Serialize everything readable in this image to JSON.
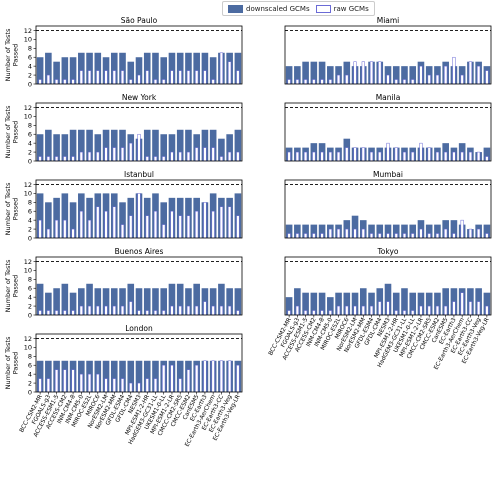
{
  "legend": {
    "items": [
      {
        "label": "downscaled GCMs",
        "color": "#4c6ba1"
      },
      {
        "label": "raw GCMs",
        "color": "#ffffff",
        "edge": "#6b6bd6"
      }
    ],
    "placement": "top-center"
  },
  "colors": {
    "downscaled": "#4c6ba1",
    "raw_fill": "#ffffff",
    "raw_edge": "#6b6bd6",
    "reference_line": "#000000"
  },
  "chart_data": {
    "type": "bar",
    "ylabel": "Number of Tests\nPassed",
    "ylim": [
      0,
      13
    ],
    "yticks": [
      0,
      2,
      4,
      6,
      8,
      10,
      12
    ],
    "reference_line": {
      "y": 12,
      "style": "dashed"
    },
    "grid": false,
    "categories": [
      "BCC-CSM2-MR",
      "FGOALS-g3",
      "ACCESS-ESM1-5",
      "ACCESS-CM2",
      "INM-CM4-8",
      "INM-CM5-0",
      "MIROC-ES2L",
      "MIROC6",
      "NorESM2-LM",
      "NorESM2-MM",
      "GFDL-ESM4",
      "GFDL-CM4",
      "NESM3",
      "MPI-ESM1-2-HR",
      "HadGEM3-GC31-LL",
      "UKESM1-0-LL",
      "MPI-ESM1-2-LR",
      "CMCC-CM2-SR5",
      "CMCC-ESM2",
      "CanESM5",
      "EC-Earth3",
      "EC-Earth3-AerChem",
      "EC-Earth3-CC",
      "EC-Earth3-Veg",
      "EC-Earth3-Veg-LR"
    ],
    "panels": [
      {
        "title": "São Paulo",
        "series": [
          {
            "name": "downscaled GCMs",
            "values": [
              6,
              7,
              5,
              6,
              6,
              7,
              7,
              7,
              6,
              7,
              7,
              5,
              6,
              7,
              7,
              6,
              7,
              7,
              7,
              7,
              7,
              6,
              7,
              7,
              7
            ]
          },
          {
            "name": "raw GCMs",
            "values": [
              1,
              2,
              1,
              1,
              1,
              3,
              3,
              3,
              3,
              3,
              3,
              1,
              2,
              3,
              1,
              1,
              3,
              3,
              3,
              3,
              3,
              1,
              7,
              5,
              3
            ]
          }
        ]
      },
      {
        "title": "Miami",
        "series": [
          {
            "name": "downscaled GCMs",
            "values": [
              4,
              4,
              5,
              5,
              5,
              4,
              4,
              5,
              4,
              4,
              5,
              5,
              4,
              4,
              4,
              4,
              5,
              4,
              4,
              5,
              4,
              4,
              5,
              5,
              4
            ]
          },
          {
            "name": "raw GCMs",
            "values": [
              1,
              1,
              1,
              1,
              1,
              1,
              2,
              2,
              5,
              5,
              5,
              5,
              2,
              1,
              1,
              1,
              4,
              2,
              2,
              4,
              6,
              2,
              5,
              4,
              3
            ]
          }
        ]
      },
      {
        "title": "New York",
        "series": [
          {
            "name": "downscaled GCMs",
            "values": [
              6,
              7,
              6,
              6,
              7,
              7,
              7,
              6,
              7,
              7,
              7,
              6,
              5,
              7,
              7,
              6,
              6,
              7,
              7,
              6,
              7,
              7,
              5,
              6,
              7
            ]
          },
          {
            "name": "raw GCMs",
            "values": [
              1,
              1,
              1,
              1,
              1,
              2,
              2,
              2,
              3,
              3,
              3,
              4,
              6,
              1,
              1,
              1,
              2,
              2,
              2,
              3,
              3,
              3,
              1,
              2,
              2
            ]
          }
        ]
      },
      {
        "title": "Manila",
        "series": [
          {
            "name": "downscaled GCMs",
            "values": [
              3,
              3,
              3,
              4,
              4,
              3,
              3,
              5,
              3,
              3,
              3,
              3,
              3,
              3,
              3,
              3,
              3,
              3,
              3,
              4,
              3,
              4,
              3,
              2,
              3
            ]
          },
          {
            "name": "raw GCMs",
            "values": [
              2,
              2,
              2,
              2,
              2,
              2,
              2,
              3,
              3,
              3,
              2,
              2,
              4,
              3,
              2,
              2,
              4,
              3,
              2,
              2,
              2,
              2,
              2,
              2,
              1
            ]
          }
        ]
      },
      {
        "title": "Istanbul",
        "series": [
          {
            "name": "downscaled GCMs",
            "values": [
              10,
              8,
              9,
              10,
              8,
              10,
              9,
              10,
              10,
              10,
              8,
              9,
              10,
              9,
              10,
              8,
              9,
              9,
              9,
              9,
              8,
              10,
              9,
              9,
              10
            ]
          },
          {
            "name": "raw GCMs",
            "values": [
              4,
              2,
              4,
              4,
              2,
              6,
              4,
              7,
              6,
              7,
              3,
              5,
              10,
              5,
              6,
              3,
              6,
              5,
              5,
              6,
              8,
              6,
              7,
              7,
              5
            ]
          }
        ]
      },
      {
        "title": "Mumbai",
        "series": [
          {
            "name": "downscaled GCMs",
            "values": [
              3,
              3,
              3,
              3,
              3,
              3,
              3,
              4,
              5,
              4,
              3,
              3,
              3,
              3,
              3,
              3,
              4,
              3,
              3,
              4,
              4,
              3,
              2,
              3,
              3
            ]
          },
          {
            "name": "raw GCMs",
            "values": [
              1,
              1,
              1,
              1,
              1,
              2,
              2,
              2,
              2,
              2,
              1,
              1,
              1,
              1,
              1,
              1,
              2,
              1,
              1,
              2,
              1,
              4,
              2,
              2,
              1
            ]
          }
        ]
      },
      {
        "title": "Buenos Aires",
        "series": [
          {
            "name": "downscaled GCMs",
            "values": [
              7,
              5,
              6,
              7,
              5,
              6,
              7,
              6,
              6,
              6,
              6,
              7,
              6,
              6,
              6,
              6,
              7,
              7,
              6,
              7,
              6,
              6,
              7,
              6,
              6
            ]
          },
          {
            "name": "raw GCMs",
            "values": [
              1,
              1,
              1,
              1,
              1,
              2,
              2,
              2,
              2,
              2,
              2,
              3,
              1,
              1,
              1,
              1,
              2,
              2,
              2,
              2,
              3,
              2,
              2,
              2,
              1
            ]
          }
        ]
      },
      {
        "title": "Tokyo",
        "series": [
          {
            "name": "downscaled GCMs",
            "values": [
              4,
              6,
              5,
              5,
              5,
              4,
              5,
              5,
              5,
              6,
              5,
              6,
              7,
              5,
              6,
              5,
              5,
              5,
              5,
              6,
              6,
              6,
              6,
              6,
              5
            ]
          },
          {
            "name": "raw GCMs",
            "values": [
              1,
              2,
              1,
              1,
              1,
              1,
              2,
              2,
              2,
              2,
              2,
              3,
              3,
              1,
              1,
              1,
              2,
              2,
              2,
              2,
              3,
              5,
              3,
              3,
              2
            ]
          }
        ]
      },
      {
        "title": "London",
        "series": [
          {
            "name": "downscaled GCMs",
            "values": [
              7,
              7,
              7,
              7,
              7,
              7,
              7,
              7,
              7,
              7,
              7,
              7,
              7,
              7,
              7,
              7,
              7,
              7,
              7,
              7,
              7,
              7,
              7,
              7,
              7
            ]
          },
          {
            "name": "raw GCMs",
            "values": [
              3,
              3,
              5,
              5,
              5,
              4,
              4,
              4,
              3,
              3,
              3,
              2,
              2,
              3,
              3,
              6,
              6,
              3,
              5,
              6,
              7,
              7,
              7,
              7,
              6
            ]
          }
        ]
      }
    ]
  }
}
